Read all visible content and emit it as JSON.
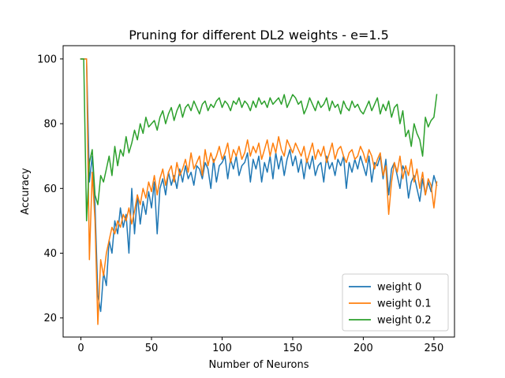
{
  "chart_data": {
    "type": "line",
    "title": "Pruning for different DL2 weights - e=1.5",
    "xlabel": "Number of Neurons",
    "ylabel": "Accuracy",
    "xlim": [
      -12.6,
      264.6
    ],
    "ylim": [
      14.1,
      104.1
    ],
    "xticks": [
      0,
      50,
      100,
      150,
      200,
      250
    ],
    "yticks": [
      20,
      40,
      60,
      80,
      100
    ],
    "grid": false,
    "legend_position": "lower right",
    "series": [
      {
        "name": "weight 0",
        "color": "#1f77b4",
        "x": [
          0,
          2,
          4,
          6,
          8,
          10,
          12,
          14,
          16,
          18,
          20,
          22,
          24,
          26,
          28,
          30,
          32,
          34,
          36,
          38,
          40,
          42,
          44,
          46,
          48,
          50,
          52,
          54,
          56,
          58,
          60,
          62,
          64,
          66,
          68,
          70,
          72,
          74,
          76,
          78,
          80,
          82,
          84,
          86,
          88,
          90,
          92,
          94,
          96,
          98,
          100,
          102,
          104,
          106,
          108,
          110,
          112,
          114,
          116,
          118,
          120,
          122,
          124,
          126,
          128,
          130,
          132,
          134,
          136,
          138,
          140,
          142,
          144,
          146,
          148,
          150,
          152,
          154,
          156,
          158,
          160,
          162,
          164,
          166,
          168,
          170,
          172,
          174,
          176,
          178,
          180,
          182,
          184,
          186,
          188,
          190,
          192,
          194,
          196,
          198,
          200,
          202,
          204,
          206,
          208,
          210,
          212,
          214,
          216,
          218,
          220,
          222,
          224,
          226,
          228,
          230,
          232,
          234,
          236,
          238,
          240,
          242,
          244,
          246,
          248,
          250,
          252
        ],
        "y": [
          100,
          100,
          100,
          62,
          70,
          55,
          27,
          22,
          34,
          30,
          44,
          40,
          50,
          46,
          54,
          48,
          52,
          40,
          60,
          46,
          58,
          49,
          56,
          52,
          59,
          54,
          62,
          46,
          60,
          63,
          58,
          65,
          61,
          64,
          60,
          66,
          62,
          67,
          63,
          65,
          61,
          67,
          66,
          63,
          68,
          66,
          60,
          69,
          62,
          67,
          68,
          70,
          63,
          69,
          66,
          70,
          64,
          67,
          68,
          71,
          62,
          69,
          66,
          70,
          62,
          68,
          65,
          70,
          63,
          71,
          66,
          70,
          64,
          69,
          72,
          67,
          70,
          65,
          69,
          63,
          69,
          66,
          70,
          64,
          67,
          68,
          62,
          70,
          66,
          68,
          64,
          69,
          67,
          70,
          60,
          68,
          65,
          69,
          66,
          70,
          67,
          64,
          70,
          62,
          68,
          67,
          70,
          63,
          69,
          58,
          66,
          68,
          64,
          60,
          67,
          65,
          57,
          62,
          64,
          60,
          56,
          63,
          58,
          62,
          59,
          64,
          61
        ]
      },
      {
        "name": "weight 0.1",
        "color": "#ff7f0e",
        "x": [
          0,
          2,
          4,
          6,
          8,
          10,
          12,
          14,
          16,
          18,
          20,
          22,
          24,
          26,
          28,
          30,
          32,
          34,
          36,
          38,
          40,
          42,
          44,
          46,
          48,
          50,
          52,
          54,
          56,
          58,
          60,
          62,
          64,
          66,
          68,
          70,
          72,
          74,
          76,
          78,
          80,
          82,
          84,
          86,
          88,
          90,
          92,
          94,
          96,
          98,
          100,
          102,
          104,
          106,
          108,
          110,
          112,
          114,
          116,
          118,
          120,
          122,
          124,
          126,
          128,
          130,
          132,
          134,
          136,
          138,
          140,
          142,
          144,
          146,
          148,
          150,
          152,
          154,
          156,
          158,
          160,
          162,
          164,
          166,
          168,
          170,
          172,
          174,
          176,
          178,
          180,
          182,
          184,
          186,
          188,
          190,
          192,
          194,
          196,
          198,
          200,
          202,
          204,
          206,
          208,
          210,
          212,
          214,
          216,
          218,
          220,
          222,
          224,
          226,
          228,
          230,
          232,
          234,
          236,
          238,
          240,
          242,
          244,
          246,
          248,
          250,
          252
        ],
        "y": [
          100,
          100,
          100,
          38,
          65,
          50,
          18,
          38,
          33,
          40,
          44,
          48,
          46,
          50,
          48,
          52,
          50,
          54,
          49,
          53,
          58,
          55,
          60,
          57,
          62,
          59,
          64,
          58,
          63,
          66,
          61,
          65,
          67,
          62,
          68,
          64,
          66,
          69,
          65,
          71,
          66,
          68,
          70,
          64,
          72,
          67,
          71,
          68,
          70,
          73,
          69,
          71,
          74,
          68,
          72,
          70,
          73,
          69,
          71,
          75,
          70,
          73,
          71,
          74,
          69,
          72,
          75,
          70,
          74,
          71,
          76,
          72,
          70,
          75,
          73,
          71,
          74,
          72,
          70,
          73,
          68,
          71,
          74,
          69,
          72,
          70,
          73,
          68,
          71,
          74,
          69,
          72,
          73,
          70,
          68,
          71,
          72,
          69,
          70,
          73,
          71,
          68,
          72,
          70,
          66,
          69,
          71,
          64,
          67,
          52,
          62,
          68,
          65,
          70,
          63,
          67,
          64,
          69,
          62,
          66,
          60,
          65,
          58,
          63,
          61,
          54,
          62
        ]
      },
      {
        "name": "weight 0.2",
        "color": "#2ca02c",
        "x": [
          0,
          2,
          4,
          6,
          8,
          10,
          12,
          14,
          16,
          18,
          20,
          22,
          24,
          26,
          28,
          30,
          32,
          34,
          36,
          38,
          40,
          42,
          44,
          46,
          48,
          50,
          52,
          54,
          56,
          58,
          60,
          62,
          64,
          66,
          68,
          70,
          72,
          74,
          76,
          78,
          80,
          82,
          84,
          86,
          88,
          90,
          92,
          94,
          96,
          98,
          100,
          102,
          104,
          106,
          108,
          110,
          112,
          114,
          116,
          118,
          120,
          122,
          124,
          126,
          128,
          130,
          132,
          134,
          136,
          138,
          140,
          142,
          144,
          146,
          148,
          150,
          152,
          154,
          156,
          158,
          160,
          162,
          164,
          166,
          168,
          170,
          172,
          174,
          176,
          178,
          180,
          182,
          184,
          186,
          188,
          190,
          192,
          194,
          196,
          198,
          200,
          202,
          204,
          206,
          208,
          210,
          212,
          214,
          216,
          218,
          220,
          222,
          224,
          226,
          228,
          230,
          232,
          234,
          236,
          238,
          240,
          242,
          244,
          246,
          248,
          250,
          252
        ],
        "y": [
          100,
          100,
          50,
          68,
          72,
          58,
          55,
          64,
          62,
          66,
          70,
          64,
          73,
          67,
          72,
          70,
          76,
          71,
          74,
          78,
          75,
          80,
          77,
          82,
          79,
          80,
          81,
          78,
          82,
          84,
          80,
          83,
          85,
          81,
          84,
          86,
          82,
          85,
          86,
          84,
          87,
          85,
          83,
          86,
          87,
          84,
          86,
          85,
          87,
          88,
          85,
          87,
          86,
          84,
          87,
          86,
          88,
          85,
          87,
          86,
          84,
          87,
          85,
          88,
          86,
          87,
          85,
          88,
          86,
          87,
          88,
          86,
          89,
          85,
          87,
          89,
          88,
          86,
          87,
          83,
          85,
          88,
          86,
          84,
          87,
          85,
          86,
          88,
          84,
          87,
          85,
          86,
          83,
          87,
          85,
          84,
          87,
          85,
          86,
          84,
          83,
          85,
          87,
          84,
          86,
          88,
          83,
          86,
          84,
          87,
          82,
          85,
          86,
          80,
          84,
          76,
          78,
          73,
          80,
          77,
          75,
          70,
          82,
          79,
          81,
          82,
          89
        ]
      }
    ]
  }
}
